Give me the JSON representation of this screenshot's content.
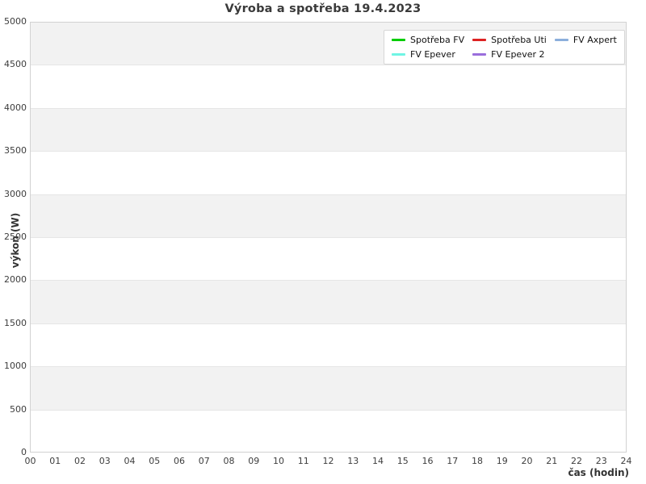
{
  "chart_data": {
    "type": "line",
    "title": "Výroba a spotřeba 19.4.2023",
    "xlabel": "čas (hodin)",
    "ylabel": "výkon (W)",
    "xlim": [
      0,
      24
    ],
    "ylim": [
      0,
      5000
    ],
    "x_ticks": [
      "00",
      "01",
      "02",
      "03",
      "04",
      "05",
      "06",
      "07",
      "08",
      "09",
      "10",
      "11",
      "12",
      "13",
      "14",
      "15",
      "16",
      "17",
      "18",
      "19",
      "20",
      "21",
      "22",
      "23",
      "24"
    ],
    "y_ticks": [
      0,
      500,
      1000,
      1500,
      2000,
      2500,
      3000,
      3500,
      4000,
      4500,
      5000
    ],
    "grid": "horizontal-bands",
    "legend_position": "top-right-inside",
    "legend_fill": "column-major-2-rows",
    "series": [
      {
        "name": "Spotřeba FV",
        "color": "#00cc00",
        "values": []
      },
      {
        "name": "FV Epever",
        "color": "#70f5e4",
        "values": []
      },
      {
        "name": "Spotřeba Uti",
        "color": "#dd2222",
        "values": []
      },
      {
        "name": "FV Epever 2",
        "color": "#9a6edc",
        "values": []
      },
      {
        "name": "FV Axpert",
        "color": "#8cafdc",
        "values": []
      }
    ],
    "colors": {
      "band_even": "#ffffff",
      "band_odd": "#f2f2f2",
      "grid_line": "#e6e6e6",
      "plot_border": "#d2d2d2",
      "title_text": "#3a3a3a",
      "tick_text": "#3d3d3d",
      "legend_bg": "#ffffff",
      "legend_border": "#d6d6d6"
    }
  }
}
